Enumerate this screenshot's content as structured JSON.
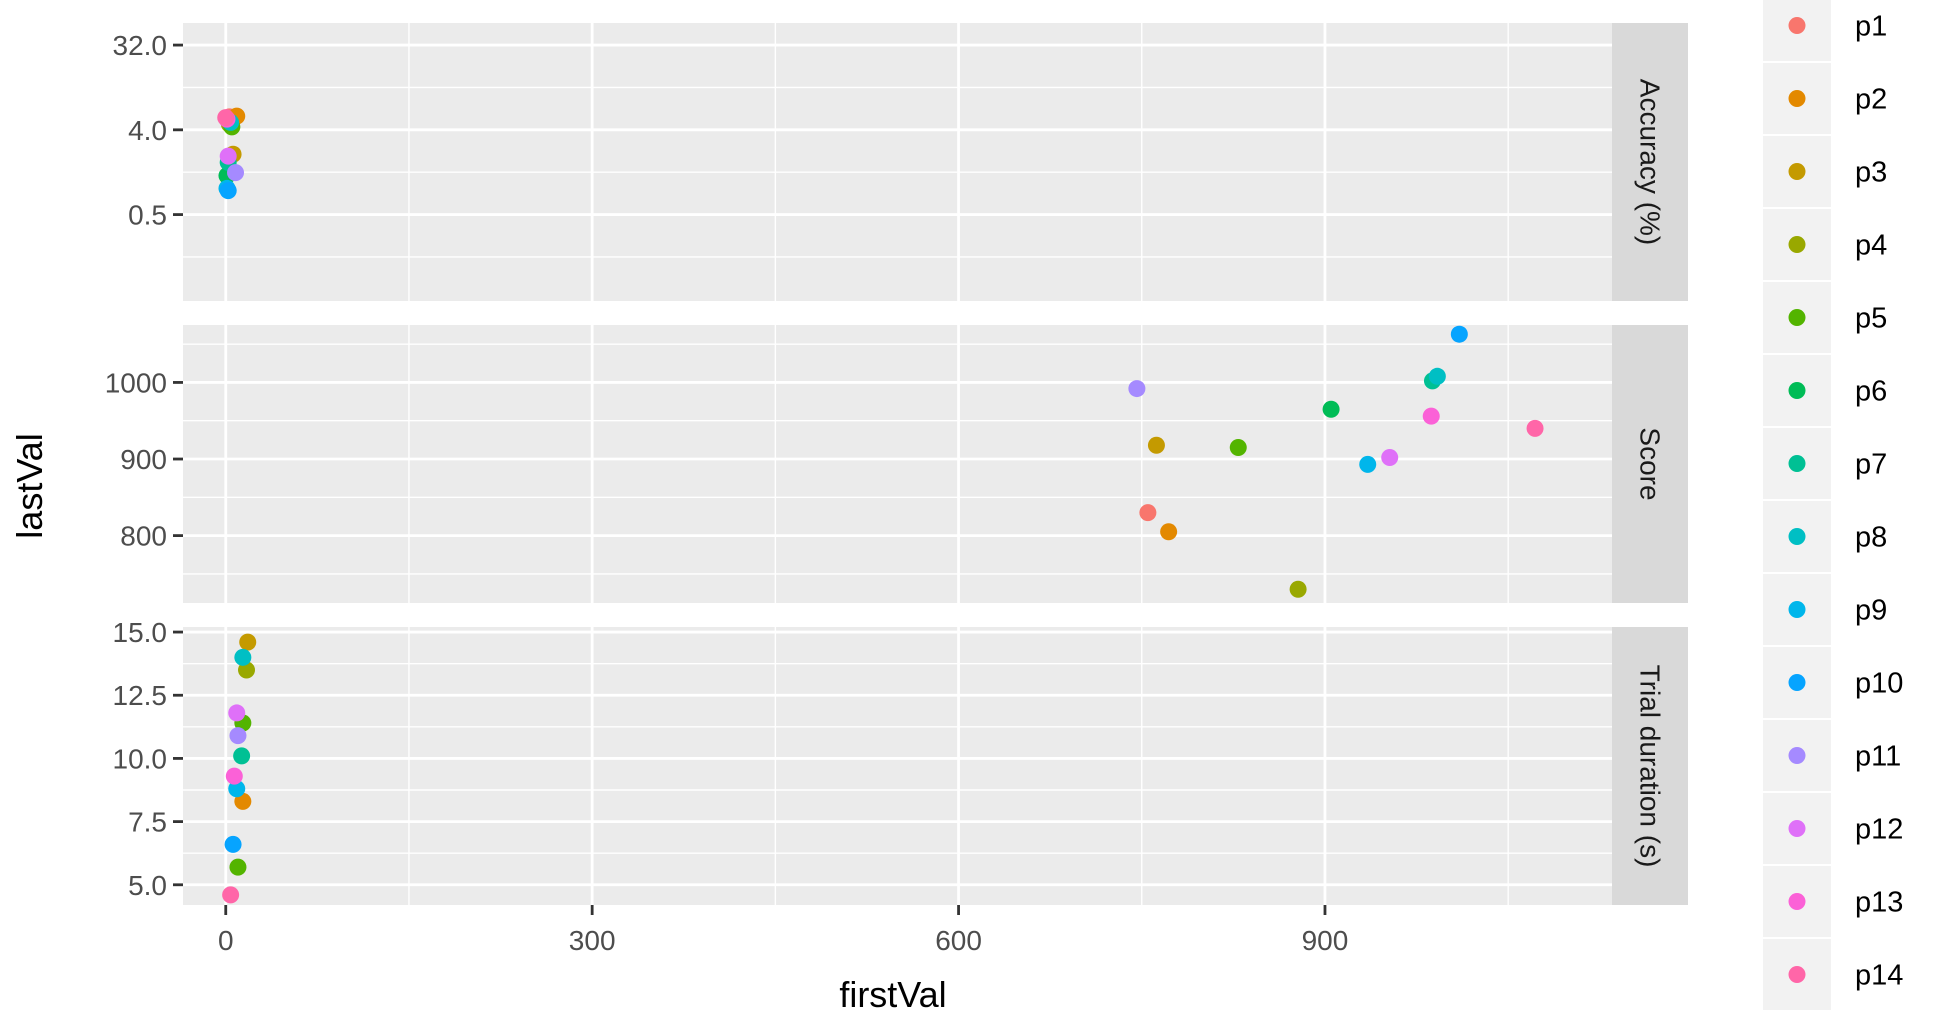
{
  "chart_data": {
    "type": "scatter",
    "xlabel": "firstVal",
    "ylabel": "lastVal",
    "x_ticks": [
      0,
      300,
      600,
      900
    ],
    "xlim": [
      -35,
      1135
    ],
    "grid": true,
    "legend_position": "right",
    "participants": [
      "p1",
      "p2",
      "p3",
      "p4",
      "p5",
      "p6",
      "p7",
      "p8",
      "p9",
      "p10",
      "p11",
      "p12",
      "p13",
      "p14"
    ],
    "colors": [
      "#F8766D",
      "#E38900",
      "#C49A00",
      "#99A800",
      "#53B400",
      "#00BC56",
      "#00C094",
      "#00BFC4",
      "#00B6EB",
      "#06A4FF",
      "#A58AFF",
      "#DF70F8",
      "#FB61D7",
      "#FF66A8"
    ],
    "panels": [
      {
        "name": "Accuracy (%)",
        "y_scale": "log2",
        "y_ticks": [
          32.0,
          4.0,
          0.5
        ],
        "y_tick_labels": [
          "32.0",
          "4.0",
          "0.5"
        ],
        "ylim": [
          0.06,
          55
        ],
        "points": [
          {
            "participant": "p1",
            "x": 3,
            "y": 5.5
          },
          {
            "participant": "p2",
            "x": 9,
            "y": 5.6
          },
          {
            "participant": "p3",
            "x": 6,
            "y": 2.2
          },
          {
            "participant": "p4",
            "x": 3,
            "y": 4.6
          },
          {
            "participant": "p5",
            "x": 5,
            "y": 4.3
          },
          {
            "participant": "p6",
            "x": 1,
            "y": 1.3
          },
          {
            "participant": "p7",
            "x": 2,
            "y": 1.8
          },
          {
            "participant": "p8",
            "x": 4,
            "y": 4.8
          },
          {
            "participant": "p9",
            "x": 1,
            "y": 0.95
          },
          {
            "participant": "p10",
            "x": 2,
            "y": 0.9
          },
          {
            "participant": "p11",
            "x": 8,
            "y": 1.4
          },
          {
            "participant": "p12",
            "x": 2,
            "y": 2.1
          },
          {
            "participant": "p13",
            "x": 1,
            "y": 5.2
          },
          {
            "participant": "p14",
            "x": 0,
            "y": 5.4
          }
        ]
      },
      {
        "name": "Score",
        "y_scale": "linear",
        "y_ticks": [
          1000,
          900,
          800
        ],
        "y_tick_labels": [
          "1000",
          "900",
          "800"
        ],
        "ylim": [
          712,
          1075
        ],
        "points": [
          {
            "participant": "p1",
            "x": 755,
            "y": 830
          },
          {
            "participant": "p2",
            "x": 772,
            "y": 805
          },
          {
            "participant": "p3",
            "x": 762,
            "y": 918
          },
          {
            "participant": "p4",
            "x": 878,
            "y": 730
          },
          {
            "participant": "p5",
            "x": 829,
            "y": 915
          },
          {
            "participant": "p6",
            "x": 905,
            "y": 965
          },
          {
            "participant": "p7",
            "x": 988,
            "y": 1002
          },
          {
            "participant": "p8",
            "x": 992,
            "y": 1008
          },
          {
            "participant": "p9",
            "x": 935,
            "y": 893
          },
          {
            "participant": "p10",
            "x": 1010,
            "y": 1063
          },
          {
            "participant": "p11",
            "x": 746,
            "y": 992
          },
          {
            "participant": "p12",
            "x": 953,
            "y": 902
          },
          {
            "participant": "p13",
            "x": 987,
            "y": 956
          },
          {
            "participant": "p14",
            "x": 1072,
            "y": 940
          }
        ]
      },
      {
        "name": "Trial duration (s)",
        "y_scale": "linear",
        "y_ticks": [
          15.0,
          12.5,
          10.0,
          7.5,
          5.0
        ],
        "y_tick_labels": [
          "15.0",
          "12.5",
          "10.0",
          "7.5",
          "5.0"
        ],
        "ylim": [
          4.2,
          15.2
        ],
        "points": [
          {
            "participant": "p2",
            "x": 14,
            "y": 8.3
          },
          {
            "participant": "p3",
            "x": 18,
            "y": 14.6
          },
          {
            "participant": "p4",
            "x": 17,
            "y": 13.5
          },
          {
            "participant": "p5",
            "x": 14,
            "y": 11.4
          },
          {
            "participant": "p5",
            "x": 10,
            "y": 5.7
          },
          {
            "participant": "p7",
            "x": 13,
            "y": 10.1
          },
          {
            "participant": "p8",
            "x": 14,
            "y": 14.0
          },
          {
            "participant": "p9",
            "x": 9,
            "y": 8.8
          },
          {
            "participant": "p10",
            "x": 6,
            "y": 6.6
          },
          {
            "participant": "p11",
            "x": 10,
            "y": 10.9
          },
          {
            "participant": "p12",
            "x": 9,
            "y": 11.8
          },
          {
            "participant": "p13",
            "x": 7,
            "y": 9.3
          },
          {
            "participant": "p14",
            "x": 4,
            "y": 4.6
          }
        ]
      }
    ]
  }
}
